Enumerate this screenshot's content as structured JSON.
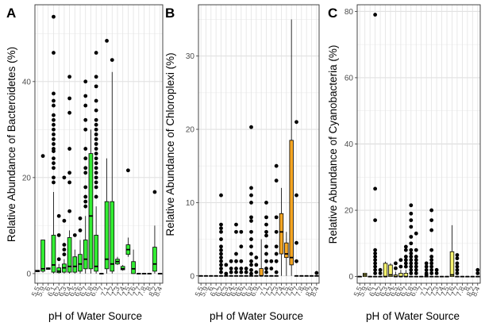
{
  "figure": {
    "panels": [
      {
        "letter": "A",
        "ylabel": "Relative Abundance of Bacteroidetes (%)",
        "xlabel": "pH of Water Source"
      },
      {
        "letter": "B",
        "ylabel": "Relative Abundance of Chloroplexi (%)",
        "xlabel": "pH of Water Source"
      },
      {
        "letter": "C",
        "ylabel": "Relative Abundance of Cyanobacteria (%)",
        "xlabel": "pH of Water Source"
      }
    ]
  },
  "chart_data": [
    {
      "type": "box",
      "panel": "A",
      "ylabel": "Relative Abundance of Bacteroidetes (%)",
      "xlabel": "pH of Water Source",
      "ylim": [
        -2,
        56
      ],
      "yticks": [
        0,
        20,
        40
      ],
      "fill": "#33ee33",
      "grid": true,
      "categories": [
        "5.5",
        "5.9",
        "6",
        "6.1",
        "6.2",
        "6.3",
        "6.4",
        "6.5",
        "6.6",
        "6.7",
        "6.8",
        "6.9",
        "7",
        "7.1",
        "7.2",
        "7.3",
        "7.4",
        "7.5",
        "7.6",
        "7.7",
        "7.8",
        "8",
        "8.2",
        "8.4"
      ],
      "boxes": [
        {
          "q1": 0.4,
          "median": 0.5,
          "q3": 0.7,
          "lo": 0.4,
          "hi": 0.7,
          "out": []
        },
        {
          "q1": 0.5,
          "median": 1.0,
          "q3": 7.0,
          "lo": 0.2,
          "hi": 7.0,
          "out": [
            24.5
          ]
        },
        {
          "q1": 0.9,
          "median": 1.0,
          "q3": 1.2,
          "lo": 0.8,
          "hi": 1.3,
          "out": []
        },
        {
          "q1": 0.3,
          "median": 1.8,
          "q3": 8.0,
          "lo": 0.0,
          "hi": 17.0,
          "out": [
            19,
            20,
            22,
            23,
            24,
            25.5,
            26,
            27,
            28,
            29,
            30,
            31,
            32,
            33,
            35,
            36,
            37.5,
            46,
            53.5
          ]
        },
        {
          "q1": 0.2,
          "median": 0.5,
          "q3": 1.2,
          "lo": 0.0,
          "hi": 2.0,
          "out": [
            3,
            8,
            12
          ]
        },
        {
          "q1": 0.3,
          "median": 1.2,
          "q3": 2.0,
          "lo": 0.0,
          "hi": 3.0,
          "out": [
            4,
            5,
            6,
            11,
            20
          ]
        },
        {
          "q1": 0.3,
          "median": 1.5,
          "q3": 7.5,
          "lo": 0.0,
          "hi": 9.0,
          "out": [
            13,
            19,
            21,
            26,
            33.5,
            36.5,
            41
          ]
        },
        {
          "q1": 0.3,
          "median": 1.5,
          "q3": 3.5,
          "lo": 0.0,
          "hi": 5.0,
          "out": [
            8
          ]
        },
        {
          "q1": 0.5,
          "median": 2.0,
          "q3": 4.0,
          "lo": 0.0,
          "hi": 7.0,
          "out": [
            9,
            11.5
          ]
        },
        {
          "q1": 1.0,
          "median": 3.0,
          "q3": 7.0,
          "lo": 0.0,
          "hi": 12.0,
          "out": [
            14,
            15,
            16,
            18,
            21,
            22,
            24,
            26,
            30,
            32,
            35,
            37,
            40
          ]
        },
        {
          "q1": 1.0,
          "median": 12.0,
          "q3": 25.0,
          "lo": 0.0,
          "hi": 30.0,
          "out": []
        },
        {
          "q1": 0.5,
          "median": 1.5,
          "q3": 8.0,
          "lo": 0.0,
          "hi": 14.0,
          "out": [
            16,
            18,
            19,
            20,
            21,
            22,
            23,
            24,
            25,
            26,
            27,
            28,
            29,
            30,
            31,
            32,
            34,
            36,
            39,
            41,
            46
          ]
        },
        {
          "q1": 0.0,
          "median": 0.0,
          "q3": 0.0,
          "lo": 0.0,
          "hi": 0.0,
          "out": []
        },
        {
          "q1": 1.0,
          "median": 3.0,
          "q3": 15.0,
          "lo": 0.0,
          "hi": 24.0,
          "out": [
            48.5
          ]
        },
        {
          "q1": 0.5,
          "median": 2.0,
          "q3": 15.0,
          "lo": 0.0,
          "hi": 42.0,
          "out": [
            44.5
          ]
        },
        {
          "q1": 2.0,
          "median": 2.5,
          "q3": 3.0,
          "lo": 1.8,
          "hi": 3.5,
          "out": []
        },
        {
          "q1": 0.8,
          "median": 1.0,
          "q3": 1.5,
          "lo": 0.6,
          "hi": 1.8,
          "out": []
        },
        {
          "q1": 4.0,
          "median": 5.0,
          "q3": 6.0,
          "lo": 3.5,
          "hi": 7.5,
          "out": [
            21.5
          ]
        },
        {
          "q1": 0.0,
          "median": 1.0,
          "q3": 2.5,
          "lo": 0.0,
          "hi": 5.0,
          "out": []
        },
        {
          "q1": 0.0,
          "median": 0.0,
          "q3": 0.0,
          "lo": 0.0,
          "hi": 0.0,
          "out": []
        },
        {
          "q1": 0.0,
          "median": 0.0,
          "q3": 0.0,
          "lo": 0.0,
          "hi": 0.0,
          "out": []
        },
        {
          "q1": 0.0,
          "median": 0.0,
          "q3": 0.0,
          "lo": 0.0,
          "hi": 0.0,
          "out": []
        },
        {
          "q1": 0.5,
          "median": 2.0,
          "q3": 5.5,
          "lo": 0.0,
          "hi": 10.0,
          "out": [
            17
          ]
        },
        {
          "q1": 0.0,
          "median": 0.0,
          "q3": 0.0,
          "lo": 0.0,
          "hi": 0.0,
          "out": []
        }
      ]
    },
    {
      "type": "box",
      "panel": "B",
      "ylabel": "Relative Abundance of Chloroplexi (%)",
      "xlabel": "pH of Water Source",
      "ylim": [
        -1,
        37
      ],
      "yticks": [
        0,
        10,
        20,
        30
      ],
      "fill": "#f5a623",
      "grid": true,
      "categories": [
        "5.5",
        "5.9",
        "6",
        "6.1",
        "6.2",
        "6.3",
        "6.4",
        "6.5",
        "6.6",
        "6.7",
        "6.8",
        "6.9",
        "7",
        "7.1",
        "7.2",
        "7.3",
        "7.4",
        "7.5",
        "7.6",
        "7.7",
        "7.8",
        "8",
        "8.2",
        "8.4"
      ],
      "boxes": [
        {
          "q1": 0.0,
          "median": 0.0,
          "q3": 0.0,
          "lo": 0.0,
          "hi": 0.0,
          "out": []
        },
        {
          "q1": 0.0,
          "median": 0.0,
          "q3": 0.0,
          "lo": 0.0,
          "hi": 0.0,
          "out": []
        },
        {
          "q1": 0.0,
          "median": 0.0,
          "q3": 0.0,
          "lo": 0.0,
          "hi": 0.0,
          "out": []
        },
        {
          "q1": 0.0,
          "median": 0.0,
          "q3": 0.0,
          "lo": 0.0,
          "hi": 0.0,
          "out": []
        },
        {
          "q1": 0.0,
          "median": 0.0,
          "q3": 0.0,
          "lo": 0.0,
          "hi": 0.0,
          "out": [
            0.5,
            1,
            1.5,
            2,
            2.5,
            3,
            3.5,
            4,
            5,
            6,
            6.5,
            7,
            11
          ]
        },
        {
          "q1": 0.0,
          "median": 0.0,
          "q3": 0.0,
          "lo": 0.0,
          "hi": 0.0,
          "out": [
            0.3,
            1.5
          ]
        },
        {
          "q1": 0.0,
          "median": 0.0,
          "q3": 0.0,
          "lo": 0.0,
          "hi": 0.0,
          "out": [
            0.5,
            1,
            2
          ]
        },
        {
          "q1": 0.0,
          "median": 0.0,
          "q3": 0.0,
          "lo": 0.0,
          "hi": 0.0,
          "out": [
            0.5,
            1,
            2,
            3,
            6,
            7
          ]
        },
        {
          "q1": 0.0,
          "median": 0.0,
          "q3": 0.0,
          "lo": 0.0,
          "hi": 0.0,
          "out": [
            0.5,
            1,
            2,
            4,
            6
          ]
        },
        {
          "q1": 0.0,
          "median": 0.0,
          "q3": 0.0,
          "lo": 0.0,
          "hi": 0.0,
          "out": [
            0.5,
            1
          ]
        },
        {
          "q1": 0.0,
          "median": 0.0,
          "q3": 0.0,
          "lo": 0.0,
          "hi": 0.0,
          "out": [
            0.3,
            0.8,
            1.5,
            2,
            3,
            4,
            5,
            6,
            7.5,
            8,
            10,
            11,
            12,
            20.3
          ]
        },
        {
          "q1": 0.0,
          "median": 0.0,
          "q3": 0.0,
          "lo": 0.0,
          "hi": 0.0,
          "out": [
            0.5,
            1.5,
            2.5
          ]
        },
        {
          "q1": 0.0,
          "median": 0.0,
          "q3": 1.0,
          "lo": 0.0,
          "hi": 5.0,
          "out": []
        },
        {
          "q1": 0.0,
          "median": 0.0,
          "q3": 0.0,
          "lo": 0.0,
          "hi": 0.0,
          "out": [
            0.5,
            1,
            2,
            3,
            4,
            5.5,
            6,
            7,
            8,
            10
          ]
        },
        {
          "q1": 0.0,
          "median": 0.0,
          "q3": 0.0,
          "lo": 0.0,
          "hi": 0.0,
          "out": [
            1,
            2
          ]
        },
        {
          "q1": 0.0,
          "median": 0.0,
          "q3": 0.0,
          "lo": 0.0,
          "hi": 0.0,
          "out": [
            0.5,
            2,
            3,
            4,
            6,
            8,
            13,
            15
          ]
        },
        {
          "q1": 3.0,
          "median": 6.0,
          "q3": 8.5,
          "lo": 0.0,
          "hi": 12.0,
          "out": []
        },
        {
          "q1": 2.5,
          "median": 3.0,
          "q3": 4.5,
          "lo": 0.0,
          "hi": 6.0,
          "out": []
        },
        {
          "q1": 1.5,
          "median": 2.5,
          "q3": 18.5,
          "lo": 0.0,
          "hi": 35.0,
          "out": []
        },
        {
          "q1": 0.0,
          "median": 0.0,
          "q3": 0.0,
          "lo": 0.0,
          "hi": 0.0,
          "out": [
            2,
            4.5,
            11,
            21
          ]
        },
        {
          "q1": 0.0,
          "median": 0.0,
          "q3": 0.0,
          "lo": 0.0,
          "hi": 0.0,
          "out": []
        },
        {
          "q1": 0.0,
          "median": 0.0,
          "q3": 0.0,
          "lo": 0.0,
          "hi": 0.0,
          "out": []
        },
        {
          "q1": 0.0,
          "median": 0.0,
          "q3": 0.0,
          "lo": 0.0,
          "hi": 0.0,
          "out": []
        },
        {
          "q1": 0.0,
          "median": 0.0,
          "q3": 0.0,
          "lo": 0.0,
          "hi": 0.0,
          "out": [
            0.4
          ]
        }
      ]
    },
    {
      "type": "box",
      "panel": "C",
      "ylabel": "Relative Abundance of Cyanobacteria (%)",
      "xlabel": "pH of Water Source",
      "ylim": [
        -2,
        82
      ],
      "yticks": [
        0,
        20,
        40,
        60,
        80
      ],
      "fill": "#f5f26e",
      "grid": true,
      "categories": [
        "5.5",
        "5.9",
        "6",
        "6.1",
        "6.2",
        "6.3",
        "6.4",
        "6.5",
        "6.6",
        "6.7",
        "6.8",
        "6.9",
        "7",
        "7.1",
        "7.2",
        "7.3",
        "7.4",
        "7.5",
        "7.6",
        "7.7",
        "7.8",
        "8",
        "8.2",
        "8.4"
      ],
      "boxes": [
        {
          "q1": 0.0,
          "median": 0.0,
          "q3": 0.0,
          "lo": 0.0,
          "hi": 0.0,
          "out": []
        },
        {
          "q1": 0.0,
          "median": 0.5,
          "q3": 1.0,
          "lo": 0.0,
          "hi": 1.0,
          "out": []
        },
        {
          "q1": 0.0,
          "median": 0.0,
          "q3": 0.0,
          "lo": 0.0,
          "hi": 0.0,
          "out": []
        },
        {
          "q1": 0.0,
          "median": 0.0,
          "q3": 0.0,
          "lo": 0.0,
          "hi": 0.0,
          "out": [
            1,
            2,
            3,
            4,
            5,
            6,
            7,
            8,
            17,
            26.5,
            79
          ]
        },
        {
          "q1": 0.0,
          "median": 0.0,
          "q3": 0.0,
          "lo": 0.0,
          "hi": 0.0,
          "out": [
            1,
            2
          ]
        },
        {
          "q1": 0.0,
          "median": 0.0,
          "q3": 4.0,
          "lo": 0.0,
          "hi": 4.5,
          "out": []
        },
        {
          "q1": 0.0,
          "median": 0.5,
          "q3": 3.5,
          "lo": 0.0,
          "hi": 4.0,
          "out": []
        },
        {
          "q1": 0.0,
          "median": 0.0,
          "q3": 0.5,
          "lo": 0.0,
          "hi": 1.5,
          "out": [
            2.5,
            4
          ]
        },
        {
          "q1": 0.0,
          "median": 0.0,
          "q3": 1.0,
          "lo": 0.0,
          "hi": 2.0,
          "out": [
            3,
            5
          ]
        },
        {
          "q1": 0.0,
          "median": 0.0,
          "q3": 1.0,
          "lo": 0.0,
          "hi": 2.0,
          "out": [
            3,
            4,
            5,
            6,
            8,
            9
          ]
        },
        {
          "q1": 0.0,
          "median": 0.0,
          "q3": 0.0,
          "lo": 0.0,
          "hi": 0.0,
          "out": [
            1,
            2,
            3,
            4,
            5,
            6,
            7,
            8,
            10,
            12,
            15,
            17,
            19,
            21.5
          ]
        },
        {
          "q1": 0.0,
          "median": 0.0,
          "q3": 0.0,
          "lo": 0.0,
          "hi": 0.0,
          "out": [
            1,
            2,
            3,
            4,
            5,
            6,
            8,
            13
          ]
        },
        {
          "q1": 0.0,
          "median": 0.0,
          "q3": 0.0,
          "lo": 0.0,
          "hi": 0.0,
          "out": []
        },
        {
          "q1": 0.0,
          "median": 0.0,
          "q3": 0.0,
          "lo": 0.0,
          "hi": 0.0,
          "out": [
            0.5,
            1,
            2,
            3,
            4
          ]
        },
        {
          "q1": 0.0,
          "median": 0.0,
          "q3": 0.0,
          "lo": 0.0,
          "hi": 0.0,
          "out": [
            1,
            2,
            3,
            4,
            5,
            6,
            8,
            14,
            17,
            20
          ]
        },
        {
          "q1": 0.0,
          "median": 0.0,
          "q3": 0.0,
          "lo": 0.0,
          "hi": 0.0,
          "out": [
            1,
            2
          ]
        },
        {
          "q1": 0.0,
          "median": 0.0,
          "q3": 0.0,
          "lo": 0.0,
          "hi": 0.0,
          "out": []
        },
        {
          "q1": 0.0,
          "median": 0.0,
          "q3": 0.0,
          "lo": 0.0,
          "hi": 0.0,
          "out": []
        },
        {
          "q1": 0.0,
          "median": 0.5,
          "q3": 7.5,
          "lo": 0.0,
          "hi": 15.5,
          "out": []
        },
        {
          "q1": 0.0,
          "median": 0.0,
          "q3": 0.0,
          "lo": 0.0,
          "hi": 0.0,
          "out": [
            1,
            2,
            3,
            4,
            5.5,
            6.5
          ]
        },
        {
          "q1": 0.0,
          "median": 0.0,
          "q3": 0.0,
          "lo": 0.0,
          "hi": 0.0,
          "out": []
        },
        {
          "q1": 0.0,
          "median": 0.0,
          "q3": 0.0,
          "lo": 0.0,
          "hi": 0.0,
          "out": []
        },
        {
          "q1": 0.0,
          "median": 0.0,
          "q3": 0.0,
          "lo": 0.0,
          "hi": 0.0,
          "out": []
        },
        {
          "q1": 0.0,
          "median": 0.0,
          "q3": 0.0,
          "lo": 0.0,
          "hi": 0.0,
          "out": [
            1,
            2
          ]
        }
      ]
    }
  ]
}
